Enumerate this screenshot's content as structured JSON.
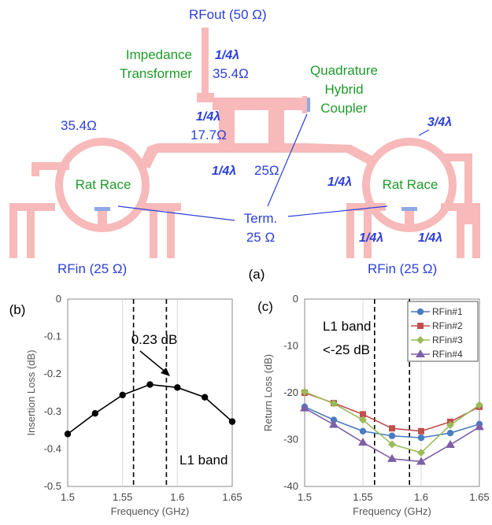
{
  "diagram": {
    "panel_label": "(a)",
    "rfout": "RFout (50 Ω)",
    "impedance_transformer": [
      "Impedance",
      "Transformer"
    ],
    "quarter_wave_top": "1/4λ",
    "z_354_top": "35.4Ω",
    "quadrature_hybrid": [
      "Quadrature",
      "Hybrid",
      "Coupler"
    ],
    "quarter_wave_mid": "1/4λ",
    "z_177": "17.7Ω",
    "z_354_left": "35.4Ω",
    "three_quarter_wave": "3/4λ",
    "quarter_wave_center": "1/4λ",
    "z_25": "25Ω",
    "quarter_wave_right": "1/4λ",
    "rat_race_left": "Rat Race",
    "rat_race_right": "Rat Race",
    "term": [
      "Term.",
      "25 Ω"
    ],
    "quarter_wave_bottom_1": "1/4λ",
    "quarter_wave_bottom_2": "1/4λ",
    "rfin_left": "RFin (25 Ω)",
    "rfin_right": "RFin (25 Ω)",
    "colors": {
      "trace": "#f7b9b9",
      "blue_text": "#2b3fd9",
      "green_text": "#1f9a2a"
    }
  },
  "chart_data": [
    {
      "panel_label": "(b)",
      "type": "line",
      "xlabel": "Frequency (GHz)",
      "ylabel": "Insertion Loss (dB)",
      "xlim": [
        1.5,
        1.65
      ],
      "ylim": [
        -0.5,
        0
      ],
      "xticks": [
        "1.5",
        "1.55",
        "1.6",
        "1.65"
      ],
      "yticks": [
        "0",
        "-0.1",
        "-0.2",
        "-0.3",
        "-0.4",
        "-0.5"
      ],
      "grid": "vertical",
      "series": [
        {
          "x": [
            1.5,
            1.525,
            1.55,
            1.575,
            1.6,
            1.625,
            1.65
          ],
          "values": [
            -0.36,
            -0.305,
            -0.256,
            -0.228,
            -0.236,
            -0.262,
            -0.327
          ],
          "color": "#000000",
          "marker": "circle"
        }
      ],
      "band_lines_x": [
        1.56,
        1.59
      ],
      "annotations": [
        "0.23 dB",
        "L1 band"
      ]
    },
    {
      "panel_label": "(c)",
      "type": "line",
      "xlabel": "Frequency (GHz)",
      "ylabel": "Return Loss (dB)",
      "xlim": [
        1.5,
        1.65
      ],
      "ylim": [
        -40,
        0
      ],
      "xticks": [
        "1.5",
        "1.55",
        "1.6",
        "1.65"
      ],
      "yticks": [
        "0",
        "-10",
        "-20",
        "-30",
        "-40"
      ],
      "grid": "vertical",
      "legend": "top-right",
      "series": [
        {
          "name": "RFin#1",
          "color": "#4a7cc0",
          "marker": "circle",
          "x": [
            1.5,
            1.525,
            1.55,
            1.575,
            1.6,
            1.625,
            1.65
          ],
          "values": [
            -23,
            -25.8,
            -28.2,
            -29.2,
            -29.6,
            -28.6,
            -26.7
          ]
        },
        {
          "name": "RFin#2",
          "color": "#c0504d",
          "marker": "square",
          "x": [
            1.5,
            1.525,
            1.55,
            1.575,
            1.6,
            1.625,
            1.65
          ],
          "values": [
            -20,
            -22.2,
            -24.6,
            -27.6,
            -28.2,
            -26.2,
            -23
          ]
        },
        {
          "name": "RFin#3",
          "color": "#9bbb59",
          "marker": "diamond",
          "x": [
            1.5,
            1.525,
            1.55,
            1.575,
            1.6,
            1.625,
            1.65
          ],
          "values": [
            -19.8,
            -22.3,
            -25.8,
            -31,
            -32.8,
            -26.9,
            -22.6
          ]
        },
        {
          "name": "RFin#4",
          "color": "#7e5fa6",
          "marker": "triangle",
          "x": [
            1.5,
            1.525,
            1.55,
            1.575,
            1.6,
            1.625,
            1.65
          ],
          "values": [
            -23.3,
            -26.8,
            -30.6,
            -34.1,
            -34.7,
            -31.1,
            -27.3
          ]
        }
      ],
      "band_lines_x": [
        1.56,
        1.59
      ],
      "annotations": [
        "L1 band",
        "<-25 dB"
      ]
    }
  ]
}
